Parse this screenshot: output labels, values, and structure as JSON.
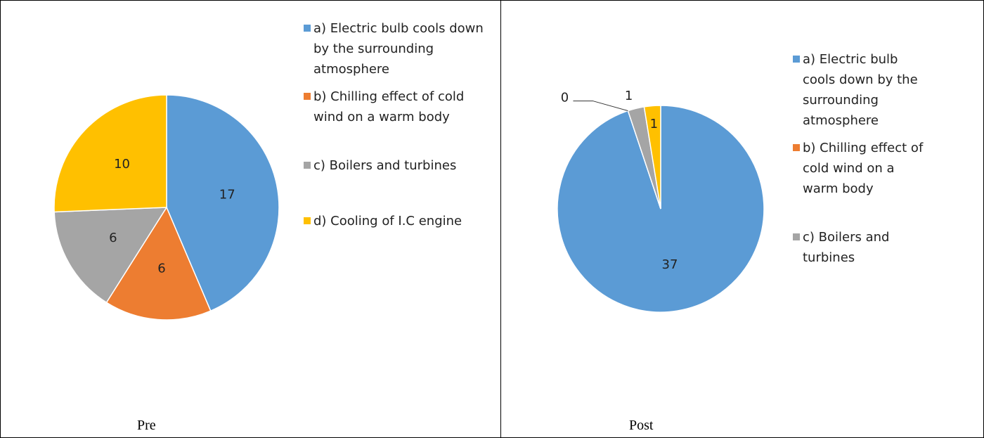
{
  "chart_data": [
    {
      "type": "pie",
      "title": "Pre",
      "categories": [
        "a) Electric bulb cools down by the surrounding atmosphere",
        "b) Chilling effect of cold wind on a warm body",
        "c) Boilers and turbines",
        "d) Cooling of I.C engine"
      ],
      "values": [
        17,
        6,
        6,
        10
      ],
      "colors": [
        "#5b9bd5",
        "#ed7d31",
        "#a5a5a5",
        "#ffc000"
      ],
      "legend": "right"
    },
    {
      "type": "pie",
      "title": "Post",
      "categories": [
        "a) Electric bulb cools down by the surrounding atmosphere",
        "b) Chilling effect of cold wind on a warm body",
        "c) Boilers and turbines",
        null
      ],
      "values": [
        37,
        0,
        1,
        1
      ],
      "colors": [
        "#5b9bd5",
        "#ed7d31",
        "#a5a5a5",
        "#ffc000"
      ],
      "legend": "right"
    }
  ]
}
